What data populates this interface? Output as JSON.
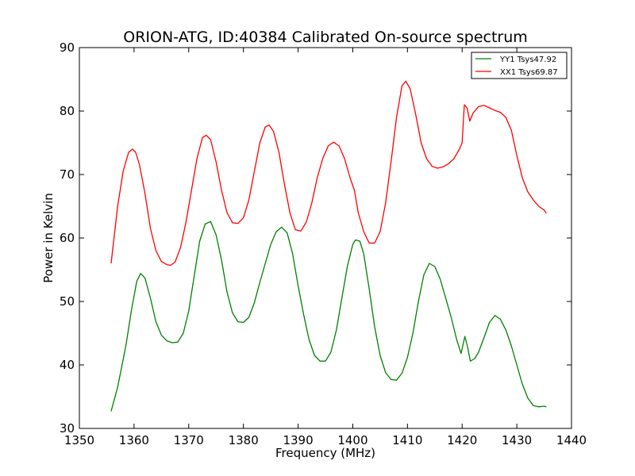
{
  "chart_data": {
    "type": "line",
    "title": "ORION-ATG, ID:40384 Calibrated On-source spectrum",
    "xlabel": "Frequency (MHz)",
    "ylabel": "Power in Kelvin",
    "xlim": [
      1350,
      1440
    ],
    "ylim": [
      30,
      90
    ],
    "xticks": [
      1350,
      1360,
      1370,
      1380,
      1390,
      1400,
      1410,
      1420,
      1430,
      1440
    ],
    "yticks": [
      30,
      40,
      50,
      60,
      70,
      80,
      90
    ],
    "grid": false,
    "legend_position": "top-right",
    "series": [
      {
        "name": "YY1 Tsys47.92",
        "color": "#008000",
        "points": [
          [
            1355.8,
            32.7
          ],
          [
            1357,
            36.5
          ],
          [
            1358.5,
            43
          ],
          [
            1359.5,
            48.5
          ],
          [
            1360.5,
            53.2
          ],
          [
            1361.2,
            54.4
          ],
          [
            1362,
            53.7
          ],
          [
            1363,
            50.5
          ],
          [
            1364,
            46.8
          ],
          [
            1365,
            44.7
          ],
          [
            1366,
            43.8
          ],
          [
            1367,
            43.5
          ],
          [
            1368,
            43.6
          ],
          [
            1369,
            45
          ],
          [
            1370,
            48.5
          ],
          [
            1371,
            54
          ],
          [
            1372,
            59.5
          ],
          [
            1373,
            62.2
          ],
          [
            1374,
            62.6
          ],
          [
            1375,
            60.5
          ],
          [
            1376,
            56.5
          ],
          [
            1377,
            51.5
          ],
          [
            1378,
            48.2
          ],
          [
            1379,
            46.8
          ],
          [
            1380,
            46.7
          ],
          [
            1381,
            47.5
          ],
          [
            1382,
            49.8
          ],
          [
            1383,
            53
          ],
          [
            1384,
            56
          ],
          [
            1385,
            59
          ],
          [
            1386,
            61
          ],
          [
            1387,
            61.7
          ],
          [
            1388,
            60.8
          ],
          [
            1389,
            57.5
          ],
          [
            1390,
            52.5
          ],
          [
            1391,
            48
          ],
          [
            1392,
            44
          ],
          [
            1393,
            41.5
          ],
          [
            1394,
            40.6
          ],
          [
            1395,
            40.6
          ],
          [
            1396,
            42
          ],
          [
            1397,
            45.5
          ],
          [
            1398,
            50.5
          ],
          [
            1399,
            55.5
          ],
          [
            1400,
            59
          ],
          [
            1400.5,
            59.7
          ],
          [
            1401.3,
            59.5
          ],
          [
            1402,
            57.5
          ],
          [
            1403,
            52
          ],
          [
            1404,
            46
          ],
          [
            1405,
            41.5
          ],
          [
            1406,
            38.8
          ],
          [
            1407,
            37.7
          ],
          [
            1408,
            37.6
          ],
          [
            1409,
            38.7
          ],
          [
            1410,
            41.2
          ],
          [
            1411,
            45
          ],
          [
            1412,
            50
          ],
          [
            1413,
            54.2
          ],
          [
            1414,
            56
          ],
          [
            1415,
            55.5
          ],
          [
            1416,
            53.5
          ],
          [
            1417,
            50.5
          ],
          [
            1418,
            47.5
          ],
          [
            1419,
            44
          ],
          [
            1419.8,
            41.8
          ],
          [
            1420.5,
            44.5
          ],
          [
            1421,
            42.8
          ],
          [
            1421.5,
            40.6
          ],
          [
            1422.3,
            41
          ],
          [
            1423,
            42
          ],
          [
            1424,
            44.3
          ],
          [
            1425,
            46.7
          ],
          [
            1426,
            47.8
          ],
          [
            1427,
            47.2
          ],
          [
            1428,
            45.5
          ],
          [
            1429,
            43
          ],
          [
            1430,
            40
          ],
          [
            1431,
            37
          ],
          [
            1432,
            34.8
          ],
          [
            1433,
            33.6
          ],
          [
            1434,
            33.4
          ],
          [
            1435,
            33.5
          ],
          [
            1435.4,
            33.4
          ]
        ]
      },
      {
        "name": "XX1 Tsys69.87",
        "color": "#ff0000",
        "points": [
          [
            1355.8,
            56
          ],
          [
            1357,
            65
          ],
          [
            1358,
            70.5
          ],
          [
            1359,
            73.5
          ],
          [
            1359.7,
            74
          ],
          [
            1360.3,
            73.5
          ],
          [
            1361,
            71.5
          ],
          [
            1362,
            67
          ],
          [
            1363,
            61.5
          ],
          [
            1364,
            58
          ],
          [
            1365,
            56.3
          ],
          [
            1366,
            55.8
          ],
          [
            1366.7,
            55.7
          ],
          [
            1367.5,
            56.2
          ],
          [
            1368.5,
            58.5
          ],
          [
            1369.5,
            62.5
          ],
          [
            1370.5,
            67.5
          ],
          [
            1371.5,
            72.5
          ],
          [
            1372.5,
            75.8
          ],
          [
            1373.2,
            76.2
          ],
          [
            1374,
            75.5
          ],
          [
            1375,
            72
          ],
          [
            1376,
            67.5
          ],
          [
            1377,
            64
          ],
          [
            1378,
            62.4
          ],
          [
            1379,
            62.3
          ],
          [
            1380,
            63.2
          ],
          [
            1381,
            66
          ],
          [
            1382,
            70.5
          ],
          [
            1383,
            75
          ],
          [
            1384,
            77.5
          ],
          [
            1384.7,
            77.8
          ],
          [
            1385.5,
            76.8
          ],
          [
            1386.5,
            73.5
          ],
          [
            1387.5,
            68.5
          ],
          [
            1388.5,
            64
          ],
          [
            1389.5,
            61.3
          ],
          [
            1390.5,
            61.1
          ],
          [
            1391.5,
            62.5
          ],
          [
            1392.5,
            65.5
          ],
          [
            1393.5,
            69.5
          ],
          [
            1394.5,
            72.5
          ],
          [
            1395.5,
            74.5
          ],
          [
            1396.5,
            75.1
          ],
          [
            1397.5,
            74.5
          ],
          [
            1398.5,
            72.5
          ],
          [
            1399.5,
            69.5
          ],
          [
            1400.3,
            67.5
          ],
          [
            1401,
            64
          ],
          [
            1402,
            61
          ],
          [
            1403,
            59.2
          ],
          [
            1404,
            59.2
          ],
          [
            1405,
            61
          ],
          [
            1406,
            65.5
          ],
          [
            1407,
            72
          ],
          [
            1408,
            79
          ],
          [
            1409,
            84
          ],
          [
            1409.7,
            84.7
          ],
          [
            1410.5,
            83.5
          ],
          [
            1411.5,
            79.5
          ],
          [
            1412.5,
            75
          ],
          [
            1413.5,
            72.5
          ],
          [
            1414.5,
            71.3
          ],
          [
            1415.5,
            71
          ],
          [
            1416.5,
            71.2
          ],
          [
            1417.5,
            71.7
          ],
          [
            1418.5,
            72.5
          ],
          [
            1419.5,
            74
          ],
          [
            1420,
            75
          ],
          [
            1420.4,
            81
          ],
          [
            1420.9,
            80.5
          ],
          [
            1421.4,
            78.4
          ],
          [
            1422,
            79.7
          ],
          [
            1423,
            80.7
          ],
          [
            1424,
            80.9
          ],
          [
            1425,
            80.5
          ],
          [
            1426,
            80.1
          ],
          [
            1427,
            79.8
          ],
          [
            1428,
            79
          ],
          [
            1429,
            77
          ],
          [
            1430,
            73
          ],
          [
            1431,
            69.5
          ],
          [
            1432,
            67.3
          ],
          [
            1433,
            66
          ],
          [
            1434,
            65
          ],
          [
            1435,
            64.4
          ],
          [
            1435.4,
            63.9
          ]
        ]
      }
    ]
  }
}
